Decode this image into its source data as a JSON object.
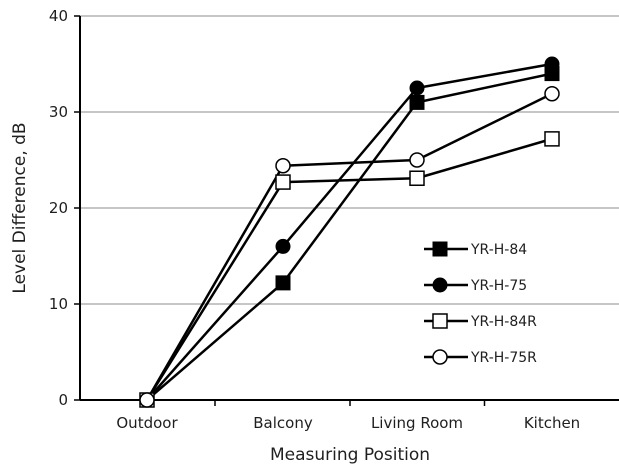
{
  "chart_data": {
    "type": "line",
    "title": "",
    "xlabel": "Measuring Position",
    "ylabel": "Level Difference, dB",
    "categories": [
      "Outdoor",
      "Balcony",
      "Living Room",
      "Kitchen"
    ],
    "ylim": [
      0,
      40
    ],
    "yticks": [
      0,
      10,
      20,
      30,
      40
    ],
    "grid": "horizontal",
    "legend_position": "right-center",
    "series": [
      {
        "name": "YR-H-84",
        "marker": "filled-square",
        "values": [
          0,
          12.2,
          31.0,
          34.0
        ]
      },
      {
        "name": "YR-H-75",
        "marker": "filled-circle",
        "values": [
          0,
          16.0,
          32.5,
          35.0
        ]
      },
      {
        "name": "YR-H-84R",
        "marker": "open-square",
        "values": [
          0,
          22.7,
          23.1,
          27.2
        ]
      },
      {
        "name": "YR-H-75R",
        "marker": "open-circle",
        "values": [
          0,
          24.4,
          25.0,
          31.9
        ]
      }
    ],
    "colors": {
      "line": "#000000",
      "grid": "#8c8c8c",
      "text": "#1f1f1f",
      "marker_fill_open": "#ffffff"
    }
  }
}
